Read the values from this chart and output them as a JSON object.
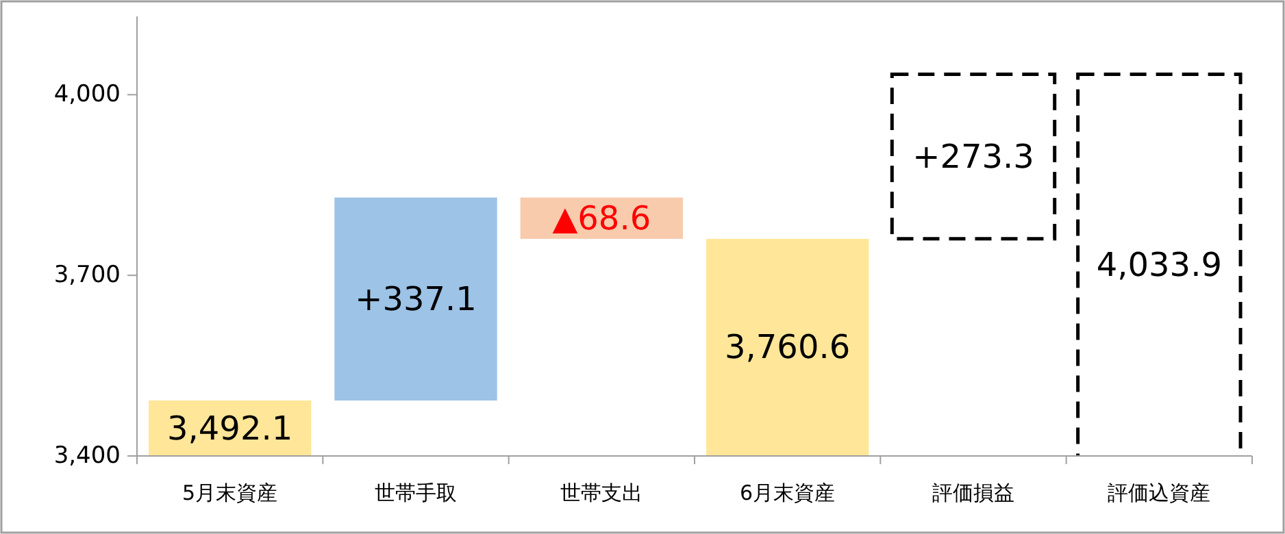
{
  "chart_data": {
    "type": "bar",
    "categories": [
      "5月末資産",
      "世帯手取",
      "世帯支出",
      "6月末資産",
      "評価損益",
      "評価込資産"
    ],
    "values": [
      3492.1,
      337.1,
      -68.6,
      3760.6,
      273.3,
      4033.9
    ],
    "base": [
      null,
      3492.1,
      3829.2,
      null,
      3760.6,
      null
    ],
    "colors": [
      "#ffe699",
      "#9dc3e6",
      "#f8cbad",
      "#ffe699",
      "#ffffff",
      "#ffffff"
    ],
    "value_labels": [
      "3,492.1",
      "+337.1",
      "▲68.6",
      "3,760.6",
      "+273.3",
      "4,033.9"
    ],
    "ylim": [
      3400,
      4130
    ],
    "yticks": [
      {
        "value": 3400,
        "label": "3,400"
      },
      {
        "value": 3700,
        "label": "3,700"
      },
      {
        "value": 4000,
        "label": "4,000"
      }
    ],
    "grid": false
  }
}
